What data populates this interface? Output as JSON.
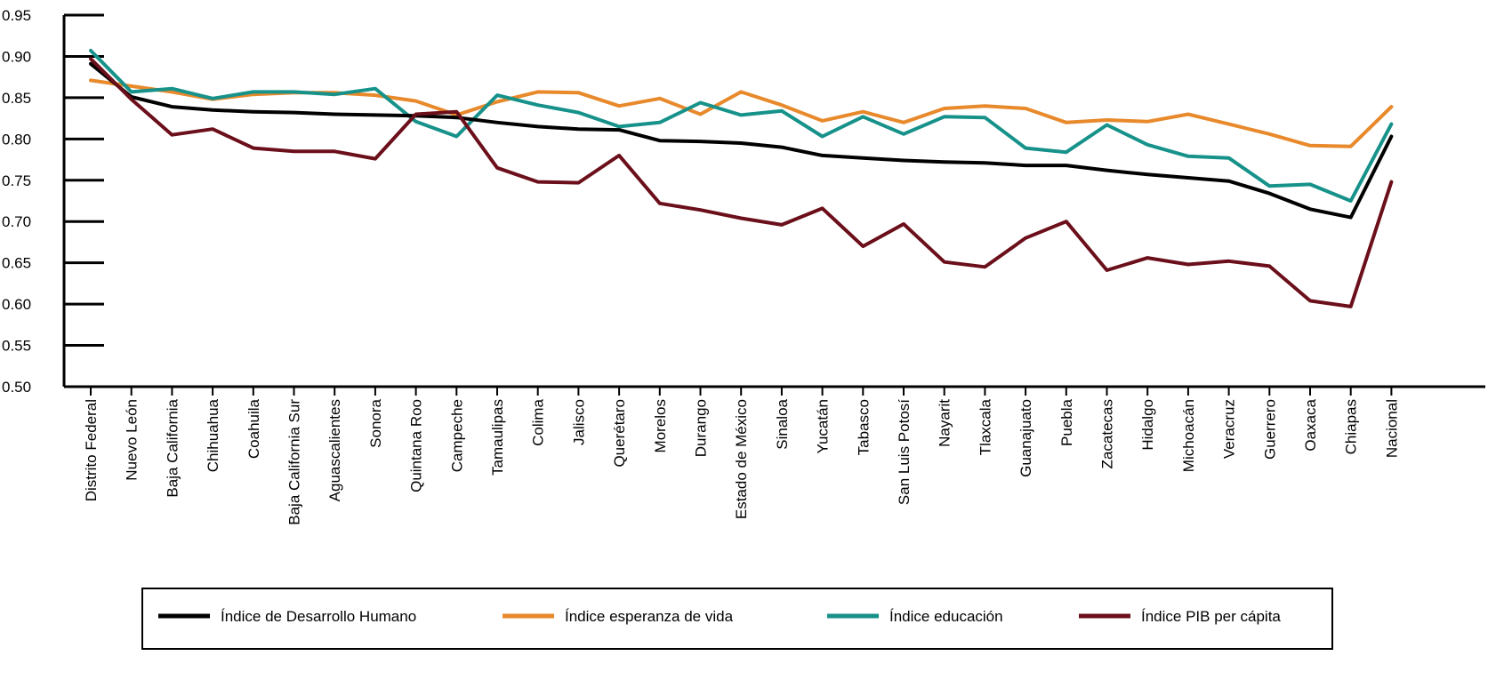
{
  "chart_data": {
    "type": "line",
    "title": "",
    "xlabel": "",
    "ylabel": "",
    "ylim": [
      0.5,
      0.95
    ],
    "yticks": [
      "0.95",
      "0.90",
      "0.85",
      "0.80",
      "0.75",
      "0.70",
      "0.65",
      "0.60",
      "0.55",
      "0.50"
    ],
    "grid": false,
    "legend_position": "bottom",
    "categories": [
      "Distrito Federal",
      "Nuevo León",
      "Baja California",
      "Chihuahua",
      "Coahuila",
      "Baja California Sur",
      "Aguascalientes",
      "Sonora",
      "Quintana Roo",
      "Campeche",
      "Tamaulipas",
      "Colima",
      "Jalisco",
      "Querétaro",
      "Morelos",
      "Durango",
      "Estado de México",
      "Sinaloa",
      "Yucatán",
      "Tabasco",
      "San Luis Potosí",
      "Nayarit",
      "Tlaxcala",
      "Guanajuato",
      "Puebla",
      "Zacatecas",
      "Hidalgo",
      "Michoacán",
      "Veracruz",
      "Guerrero",
      "Oaxaca",
      "Chiapas",
      "Nacional"
    ],
    "series": [
      {
        "name": "Índice esperanza de vida",
        "color": "#e8892b",
        "values": [
          0.871,
          0.864,
          0.857,
          0.848,
          0.854,
          0.856,
          0.856,
          0.853,
          0.846,
          0.829,
          0.845,
          0.857,
          0.856,
          0.84,
          0.849,
          0.83,
          0.857,
          0.841,
          0.822,
          0.833,
          0.82,
          0.837,
          0.84,
          0.837,
          0.82,
          0.823,
          0.821,
          0.83,
          0.818,
          0.806,
          0.792,
          0.791,
          0.839
        ]
      },
      {
        "name": "Índice educación",
        "color": "#16928a",
        "values": [
          0.907,
          0.857,
          0.861,
          0.849,
          0.857,
          0.857,
          0.854,
          0.861,
          0.821,
          0.803,
          0.853,
          0.841,
          0.832,
          0.815,
          0.82,
          0.844,
          0.829,
          0.834,
          0.803,
          0.827,
          0.806,
          0.827,
          0.826,
          0.789,
          0.784,
          0.817,
          0.793,
          0.779,
          0.777,
          0.743,
          0.745,
          0.725,
          0.818
        ]
      },
      {
        "name": "Índice de Desarrollo Humano",
        "color": "#000000",
        "values": [
          0.891,
          0.851,
          0.839,
          0.835,
          0.833,
          0.832,
          0.83,
          0.829,
          0.828,
          0.826,
          0.82,
          0.815,
          0.812,
          0.811,
          0.798,
          0.797,
          0.795,
          0.79,
          0.78,
          0.777,
          0.774,
          0.772,
          0.771,
          0.768,
          0.768,
          0.762,
          0.757,
          0.753,
          0.749,
          0.734,
          0.715,
          0.705,
          0.803
        ]
      },
      {
        "name": "Índice PIB per cápita",
        "color": "#6b0f1a",
        "values": [
          0.897,
          0.848,
          0.805,
          0.812,
          0.789,
          0.785,
          0.785,
          0.776,
          0.83,
          0.833,
          0.765,
          0.748,
          0.747,
          0.78,
          0.722,
          0.714,
          0.704,
          0.696,
          0.716,
          0.67,
          0.697,
          0.651,
          0.645,
          0.68,
          0.7,
          0.641,
          0.656,
          0.648,
          0.652,
          0.646,
          0.604,
          0.597,
          0.748
        ]
      }
    ],
    "legend_entries": [
      {
        "label": "Índice de Desarrollo Humano",
        "color": "#000000"
      },
      {
        "label": "Índice esperanza de vida",
        "color": "#e8892b"
      },
      {
        "label": "Índice educación",
        "color": "#16928a"
      },
      {
        "label": "Índice PIB per cápita",
        "color": "#6b0f1a"
      }
    ]
  }
}
